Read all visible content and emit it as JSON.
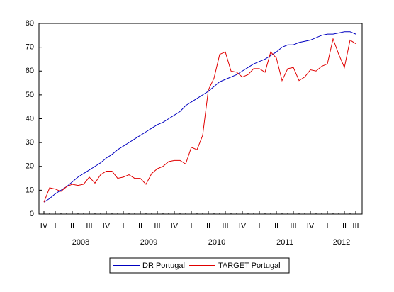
{
  "chart_data": {
    "type": "line",
    "categories": [
      "IV",
      null,
      "I",
      null,
      null,
      "II",
      null,
      null,
      "III",
      null,
      null,
      "IV",
      null,
      null,
      "I",
      null,
      null,
      "II",
      null,
      null,
      "III",
      null,
      null,
      "IV",
      null,
      null,
      "I",
      null,
      null,
      "II",
      null,
      null,
      "III",
      null,
      null,
      "IV",
      null,
      null,
      "I",
      null,
      null,
      "II",
      null,
      null,
      "III",
      null,
      null,
      "IV",
      null,
      null,
      "I",
      null,
      null,
      "II",
      null,
      "III"
    ],
    "years": [
      "2008",
      "2009",
      "2010",
      "2011",
      "2012"
    ],
    "series": [
      {
        "name": "DR Portugal",
        "color": "#0000c0",
        "values": [
          5,
          6.5,
          8.5,
          10,
          11.5,
          13.5,
          15.5,
          17,
          18.5,
          20,
          21.5,
          23.5,
          25,
          27,
          28.5,
          30,
          31.5,
          33,
          34.5,
          36,
          37.5,
          38.5,
          40,
          41.5,
          43,
          45.5,
          47,
          48.5,
          50,
          51.5,
          53.5,
          55.5,
          56.5,
          57.5,
          58.5,
          60,
          61.5,
          63,
          64,
          65,
          66.5,
          68,
          70,
          71,
          71,
          72,
          72.5,
          73,
          74,
          75,
          75.5,
          75.5,
          76,
          76.5,
          76.5,
          75.5
        ]
      },
      {
        "name": "TARGET Portugal",
        "color": "#e00000",
        "values": [
          5,
          11,
          10.5,
          9.5,
          11.5,
          12.5,
          12,
          12.5,
          15.5,
          13,
          16.5,
          18,
          18,
          15,
          15.5,
          16.5,
          15,
          15,
          12.5,
          17,
          19,
          20,
          22,
          22.5,
          22.5,
          21,
          28,
          27,
          33,
          52,
          57,
          67,
          68,
          60,
          59.5,
          57.5,
          58.5,
          61,
          61,
          59.5,
          68,
          65.5,
          56,
          61,
          61.5,
          56,
          57.5,
          60.5,
          60,
          62,
          63,
          73.5,
          67,
          61.5,
          73,
          71.5
        ]
      }
    ],
    "ylim": [
      0,
      80
    ],
    "yticks": [
      0,
      10,
      20,
      30,
      40,
      50,
      60,
      70,
      80
    ],
    "legend": "bottom"
  }
}
